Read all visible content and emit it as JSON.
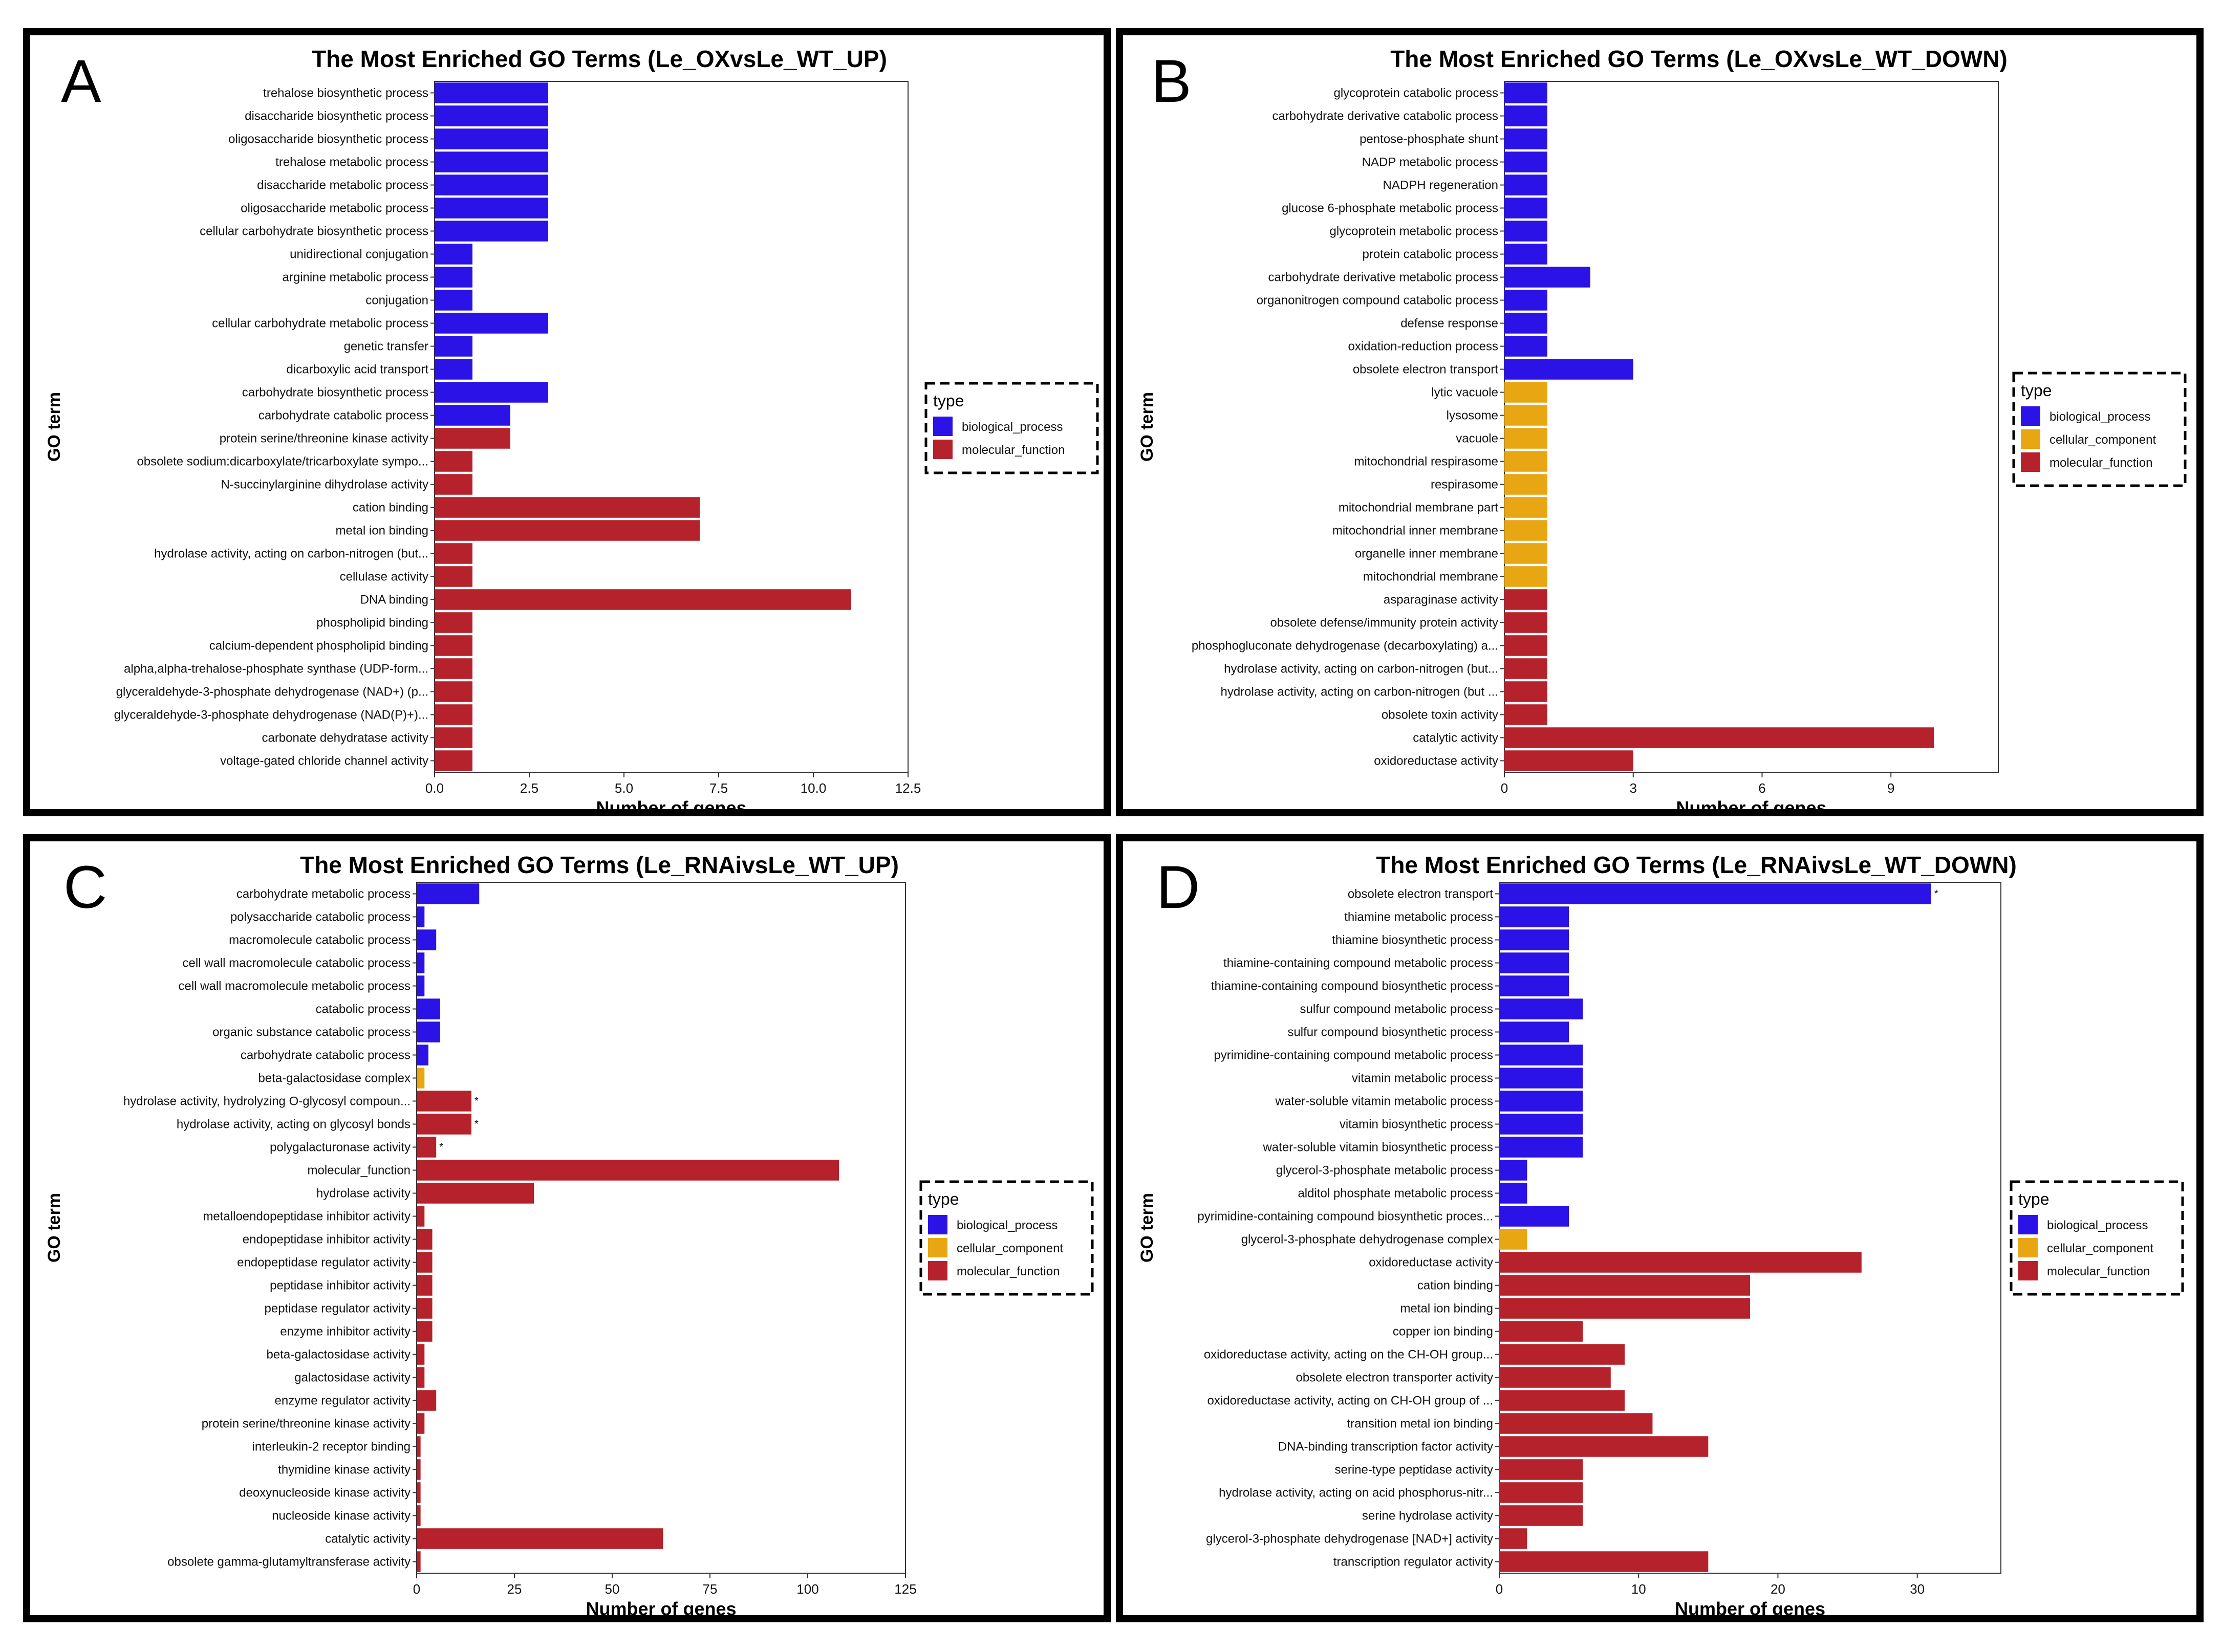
{
  "colors": {
    "biological_process": "#2b12e6",
    "cellular_component": "#e8a712",
    "molecular_function": "#b5222b"
  },
  "chart_data": [
    {
      "type": "bar",
      "orientation": "horizontal",
      "panel_letter": "A",
      "title": "The Most Enriched GO Terms (Le_OXvsLe_WT_UP)",
      "xlabel": "Number of genes",
      "ylabel": "GO term",
      "xlim": [
        0,
        12.5
      ],
      "xticks": [
        "0.0",
        "2.5",
        "5.0",
        "7.5",
        "10.0",
        "12.5"
      ],
      "legend": {
        "title": "type",
        "position": "right",
        "entries": [
          "biological_process",
          "molecular_function"
        ]
      },
      "categories": [
        "trehalose biosynthetic process",
        "disaccharide biosynthetic process",
        "oligosaccharide biosynthetic process",
        "trehalose metabolic process",
        "disaccharide metabolic process",
        "oligosaccharide metabolic process",
        "cellular carbohydrate biosynthetic process",
        "unidirectional conjugation",
        "arginine metabolic process",
        "conjugation",
        "cellular carbohydrate metabolic process",
        "genetic transfer",
        "dicarboxylic acid transport",
        "carbohydrate biosynthetic process",
        "carbohydrate catabolic process",
        "protein serine/threonine kinase activity",
        "obsolete sodium:dicarboxylate/tricarboxylate sympo...",
        "N-succinylarginine dihydrolase activity",
        "cation binding",
        "metal ion binding",
        "hydrolase activity, acting on carbon-nitrogen (but...",
        "cellulase activity",
        "DNA binding",
        "phospholipid binding",
        "calcium-dependent phospholipid binding",
        "alpha,alpha-trehalose-phosphate synthase (UDP-form...",
        "glyceraldehyde-3-phosphate dehydrogenase (NAD+) (p...",
        "glyceraldehyde-3-phosphate dehydrogenase (NAD(P)+)...",
        "carbonate dehydratase activity",
        "voltage-gated chloride channel activity"
      ],
      "values": [
        3,
        3,
        3,
        3,
        3,
        3,
        3,
        1,
        1,
        1,
        3,
        1,
        1,
        3,
        2,
        2,
        1,
        1,
        7,
        7,
        1,
        1,
        11,
        1,
        1,
        1,
        1,
        1,
        1,
        1
      ],
      "types": [
        "biological_process",
        "biological_process",
        "biological_process",
        "biological_process",
        "biological_process",
        "biological_process",
        "biological_process",
        "biological_process",
        "biological_process",
        "biological_process",
        "biological_process",
        "biological_process",
        "biological_process",
        "biological_process",
        "biological_process",
        "molecular_function",
        "molecular_function",
        "molecular_function",
        "molecular_function",
        "molecular_function",
        "molecular_function",
        "molecular_function",
        "molecular_function",
        "molecular_function",
        "molecular_function",
        "molecular_function",
        "molecular_function",
        "molecular_function",
        "molecular_function",
        "molecular_function"
      ],
      "annotations": []
    },
    {
      "type": "bar",
      "orientation": "horizontal",
      "panel_letter": "B",
      "title": "The Most Enriched GO Terms (Le_OXvsLe_WT_DOWN)",
      "xlabel": "Number of genes",
      "ylabel": "GO term",
      "xlim": [
        0,
        11.5
      ],
      "xticks": [
        "0",
        "3",
        "6",
        "9"
      ],
      "legend": {
        "title": "type",
        "position": "right",
        "entries": [
          "biological_process",
          "cellular_component",
          "molecular_function"
        ]
      },
      "categories": [
        "glycoprotein catabolic process",
        "carbohydrate derivative catabolic process",
        "pentose-phosphate shunt",
        "NADP metabolic process",
        "NADPH regeneration",
        "glucose 6-phosphate metabolic process",
        "glycoprotein metabolic process",
        "protein catabolic process",
        "carbohydrate derivative metabolic process",
        "organonitrogen compound catabolic process",
        "defense response",
        "oxidation-reduction process",
        "obsolete electron transport",
        "lytic vacuole",
        "lysosome",
        "vacuole",
        "mitochondrial respirasome",
        "respirasome",
        "mitochondrial membrane part",
        "mitochondrial inner membrane",
        "organelle inner membrane",
        "mitochondrial membrane",
        "asparaginase activity",
        "obsolete defense/immunity protein activity",
        "phosphogluconate dehydrogenase (decarboxylating) a...",
        "hydrolase activity, acting on carbon-nitrogen (but...",
        "hydrolase activity, acting on carbon-nitrogen (but ...",
        "obsolete toxin activity",
        "catalytic activity",
        "oxidoreductase activity"
      ],
      "values": [
        1,
        1,
        1,
        1,
        1,
        1,
        1,
        1,
        2,
        1,
        1,
        1,
        3,
        1,
        1,
        1,
        1,
        1,
        1,
        1,
        1,
        1,
        1,
        1,
        1,
        1,
        1,
        1,
        10,
        3
      ],
      "types": [
        "biological_process",
        "biological_process",
        "biological_process",
        "biological_process",
        "biological_process",
        "biological_process",
        "biological_process",
        "biological_process",
        "biological_process",
        "biological_process",
        "biological_process",
        "biological_process",
        "biological_process",
        "cellular_component",
        "cellular_component",
        "cellular_component",
        "cellular_component",
        "cellular_component",
        "cellular_component",
        "cellular_component",
        "cellular_component",
        "cellular_component",
        "molecular_function",
        "molecular_function",
        "molecular_function",
        "molecular_function",
        "molecular_function",
        "molecular_function",
        "molecular_function",
        "molecular_function"
      ],
      "annotations": []
    },
    {
      "type": "bar",
      "orientation": "horizontal",
      "panel_letter": "C",
      "title": "The Most Enriched GO Terms (Le_RNAivsLe_WT_UP)",
      "xlabel": "Number of genes",
      "ylabel": "GO term",
      "xlim": [
        0,
        125
      ],
      "xticks": [
        "0",
        "25",
        "50",
        "75",
        "100",
        "125"
      ],
      "legend": {
        "title": "type",
        "position": "right",
        "entries": [
          "biological_process",
          "cellular_component",
          "molecular_function"
        ]
      },
      "categories": [
        "carbohydrate metabolic process",
        "polysaccharide catabolic process",
        "macromolecule catabolic process",
        "cell wall macromolecule catabolic process",
        "cell wall macromolecule metabolic process",
        "catabolic process",
        "organic substance catabolic process",
        "carbohydrate catabolic process",
        "beta-galactosidase complex",
        "hydrolase activity, hydrolyzing O-glycosyl compoun...",
        "hydrolase activity, acting on glycosyl bonds",
        "polygalacturonase activity",
        "molecular_function",
        "hydrolase activity",
        "metalloendopeptidase inhibitor activity",
        "endopeptidase inhibitor activity",
        "endopeptidase regulator activity",
        "peptidase inhibitor activity",
        "peptidase regulator activity",
        "enzyme inhibitor activity",
        "beta-galactosidase activity",
        "galactosidase activity",
        "enzyme regulator activity",
        "protein serine/threonine kinase activity",
        "interleukin-2 receptor binding",
        "thymidine kinase activity",
        "deoxynucleoside kinase activity",
        "nucleoside kinase activity",
        "catalytic activity",
        "obsolete gamma-glutamyltransferase activity"
      ],
      "values": [
        16,
        2,
        5,
        2,
        2,
        6,
        6,
        3,
        2,
        14,
        14,
        5,
        108,
        30,
        2,
        4,
        4,
        4,
        4,
        4,
        2,
        2,
        5,
        2,
        1,
        1,
        1,
        1,
        63,
        1
      ],
      "types": [
        "biological_process",
        "biological_process",
        "biological_process",
        "biological_process",
        "biological_process",
        "biological_process",
        "biological_process",
        "biological_process",
        "cellular_component",
        "molecular_function",
        "molecular_function",
        "molecular_function",
        "molecular_function",
        "molecular_function",
        "molecular_function",
        "molecular_function",
        "molecular_function",
        "molecular_function",
        "molecular_function",
        "molecular_function",
        "molecular_function",
        "molecular_function",
        "molecular_function",
        "molecular_function",
        "molecular_function",
        "molecular_function",
        "molecular_function",
        "molecular_function",
        "molecular_function",
        "molecular_function"
      ],
      "annotations": [
        "",
        "",
        "",
        "",
        "",
        "",
        "",
        "",
        "",
        "*",
        "*",
        "*",
        "",
        "",
        "",
        "",
        "",
        "",
        "",
        "",
        "",
        "",
        "",
        "",
        "",
        "",
        "",
        "",
        "",
        ""
      ]
    },
    {
      "type": "bar",
      "orientation": "horizontal",
      "panel_letter": "D",
      "title": "The Most Enriched GO Terms (Le_RNAivsLe_WT_DOWN)",
      "xlabel": "Number of genes",
      "ylabel": "GO term",
      "xlim": [
        0,
        36
      ],
      "xticks": [
        "0",
        "10",
        "20",
        "30"
      ],
      "legend": {
        "title": "type",
        "position": "right",
        "entries": [
          "biological_process",
          "cellular_component",
          "molecular_function"
        ]
      },
      "categories": [
        "obsolete electron transport",
        "thiamine metabolic process",
        "thiamine biosynthetic process",
        "thiamine-containing compound metabolic process",
        "thiamine-containing compound biosynthetic process",
        "sulfur compound metabolic process",
        "sulfur compound biosynthetic process",
        "pyrimidine-containing compound metabolic process",
        "vitamin metabolic process",
        "water-soluble vitamin metabolic process",
        "vitamin biosynthetic process",
        "water-soluble vitamin biosynthetic process",
        "glycerol-3-phosphate metabolic process",
        "alditol phosphate metabolic process",
        "pyrimidine-containing compound biosynthetic proces...",
        "glycerol-3-phosphate dehydrogenase complex",
        "oxidoreductase activity",
        "cation binding",
        "metal ion binding",
        "copper ion binding",
        "oxidoreductase activity, acting on the CH-OH group...",
        "obsolete electron transporter activity",
        "oxidoreductase activity, acting on CH-OH group of ...",
        "transition metal ion binding",
        "DNA-binding transcription factor activity",
        "serine-type peptidase activity",
        "hydrolase activity, acting on acid phosphorus-nitr...",
        "serine hydrolase activity",
        "glycerol-3-phosphate dehydrogenase [NAD+] activity",
        "transcription regulator activity"
      ],
      "values": [
        31,
        5,
        5,
        5,
        5,
        6,
        5,
        6,
        6,
        6,
        6,
        6,
        2,
        2,
        5,
        2,
        26,
        18,
        18,
        6,
        9,
        8,
        9,
        11,
        15,
        6,
        6,
        6,
        2,
        15
      ],
      "types": [
        "biological_process",
        "biological_process",
        "biological_process",
        "biological_process",
        "biological_process",
        "biological_process",
        "biological_process",
        "biological_process",
        "biological_process",
        "biological_process",
        "biological_process",
        "biological_process",
        "biological_process",
        "biological_process",
        "biological_process",
        "cellular_component",
        "molecular_function",
        "molecular_function",
        "molecular_function",
        "molecular_function",
        "molecular_function",
        "molecular_function",
        "molecular_function",
        "molecular_function",
        "molecular_function",
        "molecular_function",
        "molecular_function",
        "molecular_function",
        "molecular_function",
        "molecular_function"
      ],
      "annotations": [
        "*",
        "",
        "",
        "",
        "",
        "",
        "",
        "",
        "",
        "",
        "",
        "",
        "",
        "",
        "",
        "",
        "",
        "",
        "",
        "",
        "",
        "",
        "",
        "",
        "",
        "",
        "",
        "",
        "",
        ""
      ]
    }
  ]
}
